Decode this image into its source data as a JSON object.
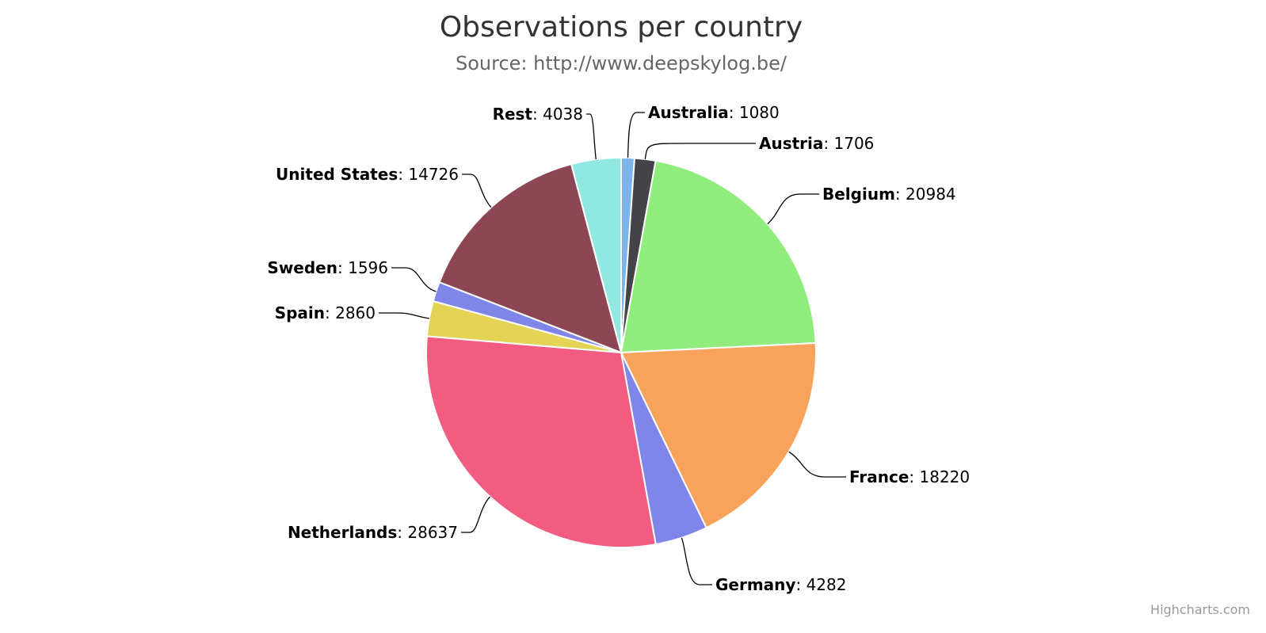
{
  "chart_data": {
    "type": "pie",
    "title": "Observations per country",
    "subtitle": "Source: http://www.deepskylog.be/",
    "slices": [
      {
        "name": "Australia",
        "value": 1080,
        "color": "#7cb5ec"
      },
      {
        "name": "Austria",
        "value": 1706,
        "color": "#434348"
      },
      {
        "name": "Belgium",
        "value": 20984,
        "color": "#90ed7d"
      },
      {
        "name": "France",
        "value": 18220,
        "color": "#f7a35c"
      },
      {
        "name": "Germany",
        "value": 4282,
        "color": "#8085e9"
      },
      {
        "name": "Netherlands",
        "value": 28637,
        "color": "#f15c80"
      },
      {
        "name": "Spain",
        "value": 2860,
        "color": "#e4d354"
      },
      {
        "name": "Sweden",
        "value": 1596,
        "color": "#8085e8"
      },
      {
        "name": "United States",
        "value": 14726,
        "color": "#8d4653"
      },
      {
        "name": "Rest",
        "value": 4038,
        "color": "#91e8e1"
      }
    ]
  },
  "credits": "Highcharts.com"
}
